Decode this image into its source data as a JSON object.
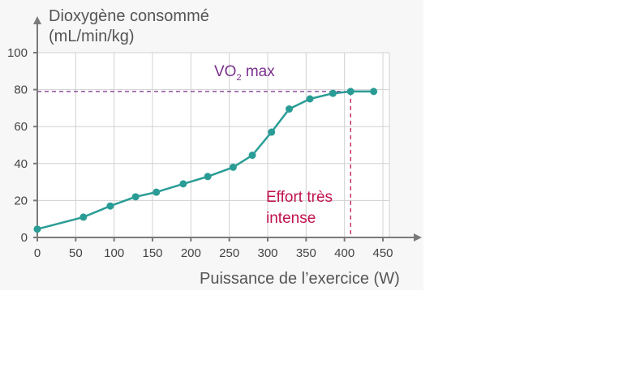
{
  "chart_data": {
    "type": "line",
    "ylabel_line1": "Dioxygène consommé",
    "ylabel_line2": "(mL/min/kg)",
    "xlabel": "Puissance de l’exercice (W)",
    "xlim": [
      0,
      450
    ],
    "ylim": [
      0,
      100
    ],
    "x_ticks": [
      0,
      50,
      100,
      150,
      200,
      250,
      300,
      350,
      400,
      450
    ],
    "y_ticks": [
      0,
      20,
      40,
      60,
      80,
      100
    ],
    "grid": true,
    "series": [
      {
        "x": [
          0,
          60,
          95,
          128,
          155,
          190,
          222,
          255,
          280,
          305,
          328,
          355,
          385,
          408,
          438
        ],
        "y": [
          4.5,
          11,
          17,
          22,
          24.5,
          29,
          33,
          38,
          44.5,
          57,
          69.5,
          75,
          78,
          79,
          79
        ]
      }
    ],
    "annotations": {
      "vo2max": {
        "label_main": "VO",
        "label_sub": "2",
        "label_rest": " max",
        "value": 79
      },
      "effort": {
        "line1": "Effort très",
        "line2": "intense",
        "x": 408
      }
    },
    "colors": {
      "series": "#2a9c96",
      "vo2max": "#7a2f8c",
      "effort": "#c0134e",
      "axis": "#7a7a7a",
      "grid": "#d0d0d0"
    }
  }
}
